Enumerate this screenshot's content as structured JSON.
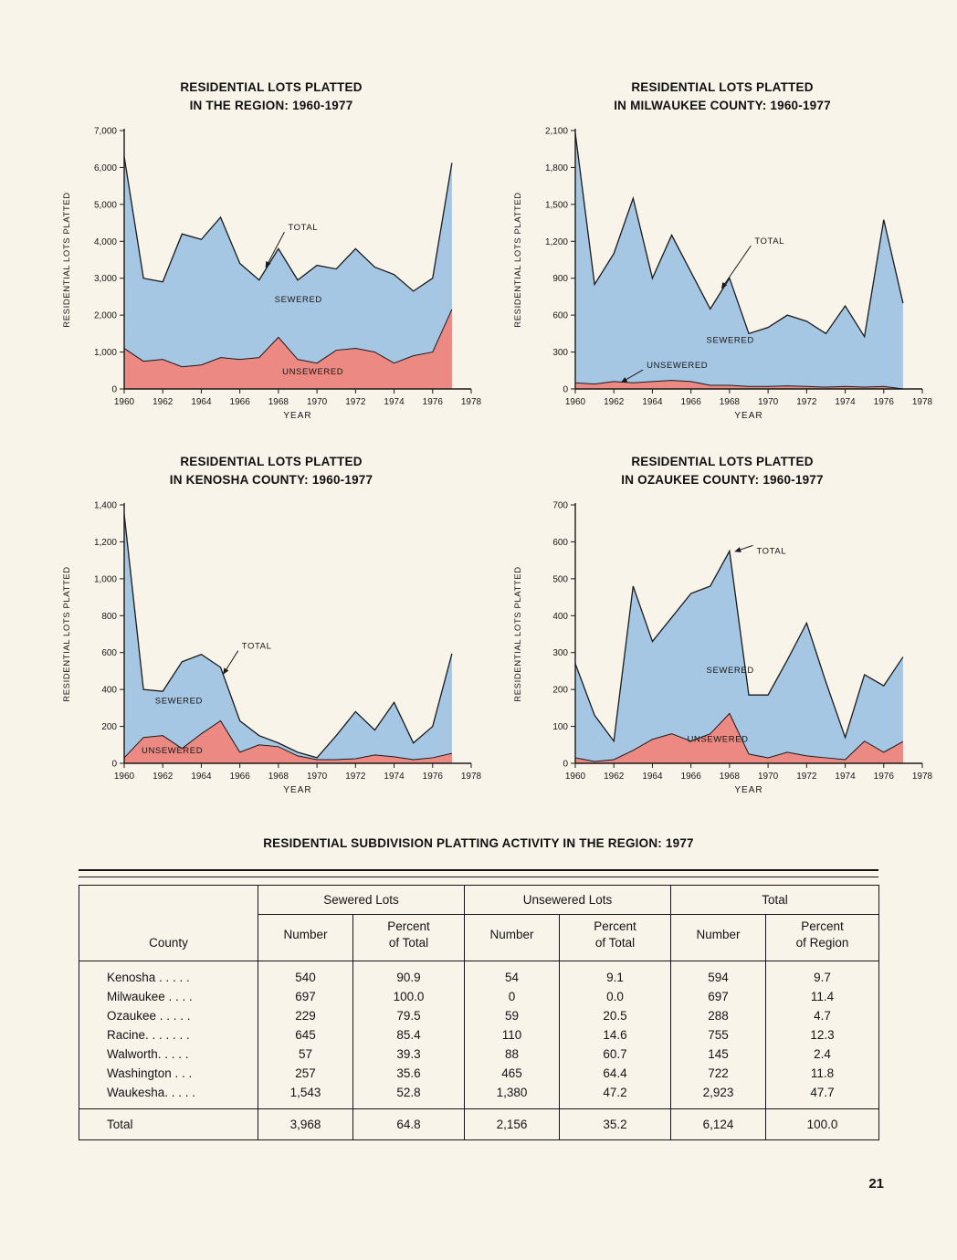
{
  "page": {
    "number": "21"
  },
  "palette": {
    "page_bg": "#f8f4ea",
    "sewered_fill": "#a6c7e4",
    "unsewered_fill": "#ec8983",
    "line": "#1a1a1a",
    "text": "#161616"
  },
  "chart_data": [
    {
      "type": "area",
      "title": "RESIDENTIAL LOTS PLATTED IN THE REGION: 1960-1977",
      "title_lines": [
        "RESIDENTIAL LOTS PLATTED",
        "IN THE REGION: 1960-1977"
      ],
      "xlabel": "YEAR",
      "ylabel": "RESIDENTIAL LOTS PLATTED",
      "xlim": [
        1960,
        1978
      ],
      "ylim": [
        0,
        7000
      ],
      "ytick_step": 1000,
      "xticks": [
        1960,
        1962,
        1964,
        1966,
        1968,
        1970,
        1972,
        1974,
        1976,
        1978
      ],
      "x": [
        1960,
        1961,
        1962,
        1963,
        1964,
        1965,
        1966,
        1967,
        1968,
        1969,
        1970,
        1971,
        1972,
        1973,
        1974,
        1975,
        1976,
        1977
      ],
      "series": [
        {
          "name": "TOTAL",
          "values": [
            6300,
            3000,
            2900,
            4200,
            4050,
            4650,
            3400,
            2950,
            3800,
            2950,
            3350,
            3250,
            3800,
            3300,
            3100,
            2650,
            3000,
            6124
          ]
        },
        {
          "name": "UNSEWERED",
          "values": [
            1100,
            750,
            800,
            600,
            650,
            850,
            800,
            850,
            1400,
            800,
            700,
            1050,
            1100,
            1000,
            700,
            900,
            1000,
            2156
          ]
        }
      ],
      "annotations": [
        {
          "label": "TOTAL",
          "x": 1968.5,
          "y": 4300,
          "ax": 1967.35,
          "ay": 3300
        },
        {
          "label": "SEWERED",
          "x": 1967.8,
          "y": 2350
        },
        {
          "label": "UNSEWERED",
          "x": 1968.2,
          "y": 400
        }
      ]
    },
    {
      "type": "area",
      "title": "RESIDENTIAL LOTS PLATTED IN MILWAUKEE COUNTY: 1960-1977",
      "title_lines": [
        "RESIDENTIAL LOTS PLATTED",
        "IN MILWAUKEE COUNTY: 1960-1977"
      ],
      "xlabel": "YEAR",
      "ylabel": "RESIDENTIAL LOTS PLATTED",
      "xlim": [
        1960,
        1978
      ],
      "ylim": [
        0,
        2100
      ],
      "ytick_step": 300,
      "xticks": [
        1960,
        1962,
        1964,
        1966,
        1968,
        1970,
        1972,
        1974,
        1976,
        1978
      ],
      "x": [
        1960,
        1961,
        1962,
        1963,
        1964,
        1965,
        1966,
        1967,
        1968,
        1969,
        1970,
        1971,
        1972,
        1973,
        1974,
        1975,
        1976,
        1977
      ],
      "series": [
        {
          "name": "TOTAL",
          "values": [
            2080,
            850,
            1100,
            1550,
            900,
            1250,
            950,
            650,
            900,
            450,
            500,
            600,
            550,
            450,
            675,
            425,
            1375,
            697
          ]
        },
        {
          "name": "UNSEWERED",
          "values": [
            50,
            40,
            60,
            50,
            60,
            70,
            60,
            30,
            30,
            20,
            20,
            25,
            20,
            15,
            20,
            15,
            20,
            0
          ]
        }
      ],
      "annotations": [
        {
          "label": "TOTAL",
          "x": 1969.3,
          "y": 1180,
          "ax": 1967.6,
          "ay": 820
        },
        {
          "label": "SEWERED",
          "x": 1966.8,
          "y": 375
        },
        {
          "label": "UNSEWERED",
          "x": 1963.7,
          "y": 170,
          "ax": 1962.4,
          "ay": 55
        }
      ]
    },
    {
      "type": "area",
      "title": "RESIDENTIAL LOTS PLATTED IN KENOSHA COUNTY: 1960-1977",
      "title_lines": [
        "RESIDENTIAL LOTS PLATTED",
        "IN KENOSHA COUNTY: 1960-1977"
      ],
      "xlabel": "YEAR",
      "ylabel": "RESIDENTIAL LOTS PLATTED",
      "xlim": [
        1960,
        1978
      ],
      "ylim": [
        0,
        1400
      ],
      "ytick_step": 200,
      "xticks": [
        1960,
        1962,
        1964,
        1966,
        1968,
        1970,
        1972,
        1974,
        1976,
        1978
      ],
      "x": [
        1960,
        1961,
        1962,
        1963,
        1964,
        1965,
        1966,
        1967,
        1968,
        1969,
        1970,
        1971,
        1972,
        1973,
        1974,
        1975,
        1976,
        1977
      ],
      "series": [
        {
          "name": "TOTAL",
          "values": [
            1350,
            400,
            390,
            550,
            590,
            520,
            230,
            150,
            110,
            60,
            30,
            150,
            280,
            180,
            330,
            110,
            200,
            594
          ]
        },
        {
          "name": "UNSEWERED",
          "values": [
            30,
            140,
            150,
            80,
            160,
            230,
            60,
            100,
            90,
            40,
            20,
            20,
            25,
            45,
            35,
            20,
            30,
            54
          ]
        }
      ],
      "annotations": [
        {
          "label": "TOTAL",
          "x": 1966.1,
          "y": 620,
          "ax": 1965.15,
          "ay": 485
        },
        {
          "label": "SEWERED",
          "x": 1961.6,
          "y": 325
        },
        {
          "label": "UNSEWERED",
          "x": 1960.9,
          "y": 55
        }
      ]
    },
    {
      "type": "area",
      "title": "RESIDENTIAL LOTS PLATTED IN OZAUKEE COUNTY: 1960-1977",
      "title_lines": [
        "RESIDENTIAL LOTS PLATTED",
        "IN OZAUKEE COUNTY: 1960-1977"
      ],
      "xlabel": "YEAR",
      "ylabel": "RESIDENTIAL LOTS PLATTED",
      "xlim": [
        1960,
        1978
      ],
      "ylim": [
        0,
        700
      ],
      "ytick_step": 100,
      "xticks": [
        1960,
        1962,
        1964,
        1966,
        1968,
        1970,
        1972,
        1974,
        1976,
        1978
      ],
      "x": [
        1960,
        1961,
        1962,
        1963,
        1964,
        1965,
        1966,
        1967,
        1968,
        1969,
        1970,
        1971,
        1972,
        1973,
        1974,
        1975,
        1976,
        1977
      ],
      "series": [
        {
          "name": "TOTAL",
          "values": [
            270,
            130,
            60,
            480,
            330,
            395,
            460,
            480,
            575,
            185,
            185,
            280,
            380,
            220,
            70,
            240,
            210,
            288
          ]
        },
        {
          "name": "UNSEWERED",
          "values": [
            15,
            5,
            10,
            35,
            65,
            80,
            60,
            80,
            135,
            25,
            15,
            30,
            20,
            15,
            10,
            60,
            30,
            59
          ]
        }
      ],
      "annotations": [
        {
          "label": "TOTAL",
          "x": 1969.4,
          "y": 568,
          "ax": 1968.3,
          "ay": 574
        },
        {
          "label": "SEWERED",
          "x": 1966.8,
          "y": 245
        },
        {
          "label": "UNSEWERED",
          "x": 1965.8,
          "y": 58
        }
      ]
    }
  ],
  "table": {
    "title": "RESIDENTIAL SUBDIVISION PLATTING ACTIVITY IN THE REGION: 1977",
    "group_headers": [
      "Sewered Lots",
      "Unsewered Lots",
      "Total"
    ],
    "col_headers": [
      "County",
      "Number",
      "Percent\nof Total",
      "Number",
      "Percent\nof Total",
      "Number",
      "Percent\nof Region"
    ],
    "rows": [
      {
        "county": "Kenosha . . . . .",
        "cells": [
          "540",
          "90.9",
          "54",
          "9.1",
          "594",
          "9.7"
        ]
      },
      {
        "county": "Milwaukee . . . .",
        "cells": [
          "697",
          "100.0",
          "0",
          "0.0",
          "697",
          "11.4"
        ]
      },
      {
        "county": "Ozaukee . . . . .",
        "cells": [
          "229",
          "79.5",
          "59",
          "20.5",
          "288",
          "4.7"
        ]
      },
      {
        "county": "Racine. . . . . . .",
        "cells": [
          "645",
          "85.4",
          "110",
          "14.6",
          "755",
          "12.3"
        ]
      },
      {
        "county": "Walworth. . . . .",
        "cells": [
          "57",
          "39.3",
          "88",
          "60.7",
          "145",
          "2.4"
        ]
      },
      {
        "county": "Washington . . .",
        "cells": [
          "257",
          "35.6",
          "465",
          "64.4",
          "722",
          "11.8"
        ]
      },
      {
        "county": "Waukesha. . . . .",
        "cells": [
          "1,543",
          "52.8",
          "1,380",
          "47.2",
          "2,923",
          "47.7"
        ]
      }
    ],
    "total_row": {
      "county": "Total",
      "cells": [
        "3,968",
        "64.8",
        "2,156",
        "35.2",
        "6,124",
        "100.0"
      ]
    }
  }
}
